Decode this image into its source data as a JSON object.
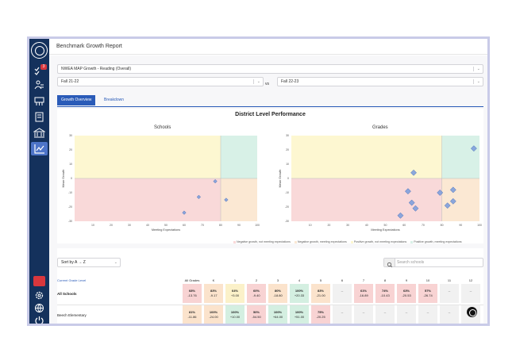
{
  "header": {
    "title": "Benchmark Growth Report"
  },
  "sidebar": {
    "badge": "3",
    "items": [
      "tasks-icon",
      "people-icon",
      "classroom-icon",
      "book-icon",
      "district-icon",
      "chart-icon"
    ],
    "bottom_items": [
      "chat-icon",
      "settings-icon",
      "globe-icon",
      "logout-icon"
    ]
  },
  "filters": {
    "assessment": "NWEA MAP Growth - Reading (Overall)",
    "period_from": "Fall 21-22",
    "vs": "vs",
    "period_to": "Fall 22-23"
  },
  "tabs": [
    "Growth Overview",
    "Breakdown"
  ],
  "section_title": "District Level Performance",
  "charts": {
    "schools_title": "Schools",
    "grades_title": "Grades",
    "xlabel": "Meeting Expectations",
    "ylabel": "Mean Growth",
    "xticks": [
      "10",
      "20",
      "30",
      "40",
      "50",
      "60",
      "70",
      "80",
      "90",
      "100"
    ],
    "yticks": [
      "30",
      "20",
      "10",
      "0",
      "-10",
      "-20",
      "-30"
    ],
    "quadrant_colors": {
      "neg_not": "#f9d9d9",
      "neg_meet": "#fbe8d3",
      "pos_not": "#fdf7d1",
      "pos_meet": "#d8f1e7"
    }
  },
  "chart_data": [
    {
      "type": "scatter",
      "title": "Schools",
      "xlabel": "Meeting Expectations",
      "ylabel": "Mean Growth",
      "xlim": [
        0,
        100
      ],
      "ylim": [
        -30,
        30
      ],
      "points": [
        {
          "x": 60,
          "y": -24
        },
        {
          "x": 68,
          "y": -13
        },
        {
          "x": 77,
          "y": -2
        },
        {
          "x": 83,
          "y": -15
        }
      ]
    },
    {
      "type": "scatter",
      "title": "Grades",
      "xlabel": "Meeting Expectations",
      "ylabel": "Mean Growth",
      "xlim": [
        0,
        100
      ],
      "ylim": [
        -30,
        30
      ],
      "points": [
        {
          "x": 97,
          "y": 21
        },
        {
          "x": 65,
          "y": 4
        },
        {
          "x": 62,
          "y": -9
        },
        {
          "x": 64,
          "y": -17
        },
        {
          "x": 66,
          "y": -21
        },
        {
          "x": 58,
          "y": -26
        },
        {
          "x": 79,
          "y": -10
        },
        {
          "x": 86,
          "y": -8
        },
        {
          "x": 86,
          "y": -16
        },
        {
          "x": 83,
          "y": -19
        }
      ]
    }
  ],
  "legend": [
    {
      "label": "Negative growth, not meeting expectations",
      "color": "#f9d9d9"
    },
    {
      "label": "Negative growth, meeting expectations",
      "color": "#fbe8d3"
    },
    {
      "label": "Positive growth, not meeting expectations",
      "color": "#fdf7d1"
    },
    {
      "label": "Positive growth, meeting expectations",
      "color": "#d8f1e7"
    }
  ],
  "table": {
    "sort_label": "Sort by A → Z",
    "search_placeholder": "Search schools",
    "first_col_header": "Current Grade Level",
    "grade_headers": [
      "All Grades",
      "K",
      "1",
      "2",
      "3",
      "4",
      "5",
      "6",
      "7",
      "8",
      "9",
      "10",
      "11",
      "12"
    ],
    "rows": [
      {
        "label": "All Schools",
        "cells": [
          {
            "pct": "68%",
            "delta": "-13.76",
            "c": "red"
          },
          {
            "pct": "83%",
            "delta": "-9.17",
            "c": "org"
          },
          {
            "pct": "64%",
            "delta": "+3.00",
            "c": "yel"
          },
          {
            "pct": "60%",
            "delta": "-9.40",
            "c": "red"
          },
          {
            "pct": "80%",
            "delta": "-18.80",
            "c": "org"
          },
          {
            "pct": "100%",
            "delta": "+20.33",
            "c": "grn"
          },
          {
            "pct": "83%",
            "delta": "-21.00",
            "c": "org"
          },
          {
            "pct": "--",
            "delta": "",
            "c": "gry"
          },
          {
            "pct": "61%",
            "delta": "-16.89",
            "c": "red"
          },
          {
            "pct": "74%",
            "delta": "-10.43",
            "c": "red"
          },
          {
            "pct": "63%",
            "delta": "-20.53",
            "c": "red"
          },
          {
            "pct": "57%",
            "delta": "-26.74",
            "c": "red"
          },
          {
            "pct": "--",
            "delta": "",
            "c": "gry"
          },
          {
            "pct": "--",
            "delta": "",
            "c": "gry"
          }
        ]
      },
      {
        "label": "Beech Elementary",
        "cells": [
          {
            "pct": "81%",
            "delta": "-11.86",
            "c": "org"
          },
          {
            "pct": "100%",
            "delta": "-24.00",
            "c": "org"
          },
          {
            "pct": "100%",
            "delta": "+10.00",
            "c": "grn"
          },
          {
            "pct": "50%",
            "delta": "-54.50",
            "c": "red"
          },
          {
            "pct": "100%",
            "delta": "+64.00",
            "c": "grn"
          },
          {
            "pct": "100%",
            "delta": "+51.00",
            "c": "grn"
          },
          {
            "pct": "75%",
            "delta": "-20.25",
            "c": "red"
          },
          {
            "pct": "--",
            "delta": "",
            "c": "gry"
          },
          {
            "pct": "--",
            "delta": "",
            "c": "gry"
          },
          {
            "pct": "--",
            "delta": "",
            "c": "gry"
          },
          {
            "pct": "--",
            "delta": "",
            "c": "gry"
          },
          {
            "pct": "--",
            "delta": "",
            "c": "gry"
          },
          {
            "pct": "--",
            "delta": "",
            "c": "gry"
          },
          {
            "pct": "--",
            "delta": "",
            "c": "gry"
          }
        ]
      }
    ]
  }
}
